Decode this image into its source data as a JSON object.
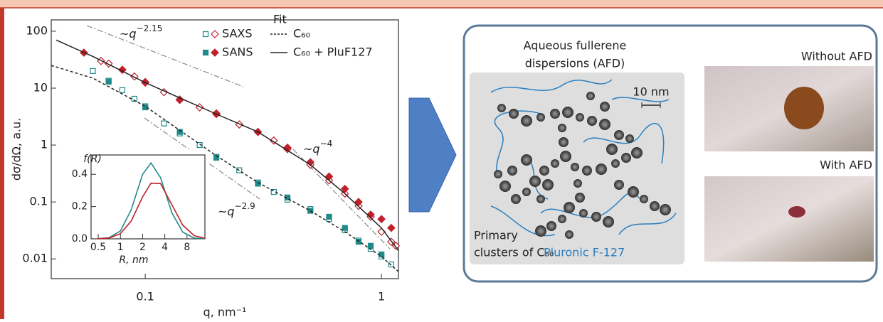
{
  "chart_data": [
    {
      "type": "scatter",
      "xscale": "log",
      "yscale": "log",
      "xlim": [
        0.04,
        1.18
      ],
      "ylim": [
        0.0045,
        158
      ],
      "xticks": [
        0.1,
        1
      ],
      "yticks": [
        0.01,
        0.1,
        1,
        10,
        100
      ],
      "xlabel": "q, nm⁻¹",
      "ylabel": "dσ/dΩ, a.u.",
      "legend_title": "Fit",
      "annotations": [
        {
          "prefix": "~",
          "var": "q",
          "exponent": "−2.15"
        },
        {
          "prefix": "~",
          "var": "q",
          "exponent": "−2.9"
        },
        {
          "prefix": "~",
          "var": "q",
          "exponent": "−4"
        }
      ],
      "series": [
        {
          "name": "SAXS",
          "marker": "square",
          "filled": false,
          "color": "#1f8a8a",
          "x": [
            0.06,
            0.07,
            0.08,
            0.09,
            0.1,
            0.12,
            0.14,
            0.17,
            0.2,
            0.25,
            0.3,
            0.35,
            0.4,
            0.5,
            0.6,
            0.7,
            0.8,
            0.9,
            1.0,
            1.1
          ],
          "values": [
            20,
            13.5,
            9.2,
            6.5,
            4.8,
            2.4,
            1.6,
            1.0,
            0.62,
            0.36,
            0.22,
            0.15,
            0.11,
            0.075,
            0.05,
            0.032,
            0.021,
            0.015,
            0.011,
            0.008
          ]
        },
        {
          "name": "SANS",
          "marker": "square",
          "filled": true,
          "color": "#1f8a8a",
          "x": [
            0.07,
            0.1,
            0.14,
            0.2,
            0.3,
            0.4,
            0.5,
            0.6,
            0.7,
            0.8,
            0.9,
            1.0
          ],
          "values": [
            13,
            4.6,
            1.7,
            0.6,
            0.21,
            0.12,
            0.07,
            0.055,
            0.035,
            0.02,
            0.017,
            0.012
          ]
        },
        {
          "marker": "diamond",
          "filled": false,
          "color": "#c0202a",
          "x": [
            0.065,
            0.07,
            0.08,
            0.09,
            0.1,
            0.12,
            0.14,
            0.17,
            0.2,
            0.25,
            0.3,
            0.35,
            0.4,
            0.5,
            0.6,
            0.7,
            0.8,
            0.9,
            1.0,
            1.1,
            1.15
          ],
          "values": [
            30,
            27,
            21,
            16,
            12.5,
            8.5,
            6.3,
            4.6,
            3.5,
            2.3,
            1.7,
            1.2,
            0.85,
            0.45,
            0.24,
            0.14,
            0.085,
            0.055,
            0.03,
            0.02,
            0.017
          ]
        },
        {
          "marker": "diamond",
          "filled": true,
          "color": "#c0202a",
          "x": [
            0.055,
            0.08,
            0.1,
            0.14,
            0.2,
            0.3,
            0.4,
            0.5,
            0.6,
            0.7,
            0.8,
            0.9,
            1.0,
            1.1
          ],
          "values": [
            42,
            21,
            12.8,
            6.2,
            3.6,
            1.7,
            0.9,
            0.5,
            0.28,
            0.17,
            0.1,
            0.06,
            0.05,
            0.035
          ]
        },
        {
          "type": "line",
          "name": "C₆₀",
          "style": "dashed",
          "color": "#222222",
          "x": [
            0.04,
            0.06,
            0.1,
            0.2,
            0.3,
            0.5,
            0.7,
            1.0,
            1.18
          ],
          "values": [
            25,
            15,
            4.8,
            0.65,
            0.22,
            0.07,
            0.03,
            0.011,
            0.006
          ]
        },
        {
          "type": "line",
          "name": "C₆₀ + PluF127",
          "style": "solid",
          "color": "#222222",
          "x": [
            0.042,
            0.06,
            0.1,
            0.2,
            0.3,
            0.5,
            0.7,
            1.0,
            1.18
          ],
          "values": [
            70,
            36,
            12.5,
            3.5,
            1.7,
            0.45,
            0.14,
            0.035,
            0.014
          ]
        }
      ]
    },
    {
      "type": "line",
      "xscale": "log",
      "xlim": [
        0.4,
        14
      ],
      "ylim": [
        0,
        0.52
      ],
      "xticks": [
        0.5,
        1,
        2,
        4,
        8
      ],
      "yticks": [
        {
          "value": 0,
          "label": "0.0"
        },
        0.2,
        0.4
      ],
      "xlabel": "R, nm",
      "ylabel": "f(R)",
      "series": [
        {
          "color": "#1f8a8a",
          "x": [
            0.5,
            0.7,
            1,
            1.4,
            2,
            2.6,
            3.5,
            5,
            7,
            10,
            14
          ],
          "values": [
            0.001,
            0.007,
            0.049,
            0.18,
            0.4,
            0.47,
            0.38,
            0.16,
            0.042,
            0.005,
            0.001
          ]
        },
        {
          "color": "#c0202a",
          "x": [
            0.5,
            0.7,
            1,
            1.4,
            2,
            2.6,
            3.5,
            5,
            7,
            10,
            14
          ],
          "values": [
            0.001,
            0.005,
            0.032,
            0.11,
            0.26,
            0.345,
            0.343,
            0.21,
            0.085,
            0.02,
            0.003
          ]
        }
      ]
    }
  ],
  "diagram": {
    "title_lines": [
      "Aqueous fullerene",
      "dispersions (AFD)"
    ],
    "scale_bar": "10 nm",
    "cluster_label_lines": [
      "Primary",
      "clusters of C₆₀"
    ],
    "polymer_label": "Pluronic F-127",
    "photo_labels": [
      "Without AFD",
      "With AFD"
    ]
  }
}
